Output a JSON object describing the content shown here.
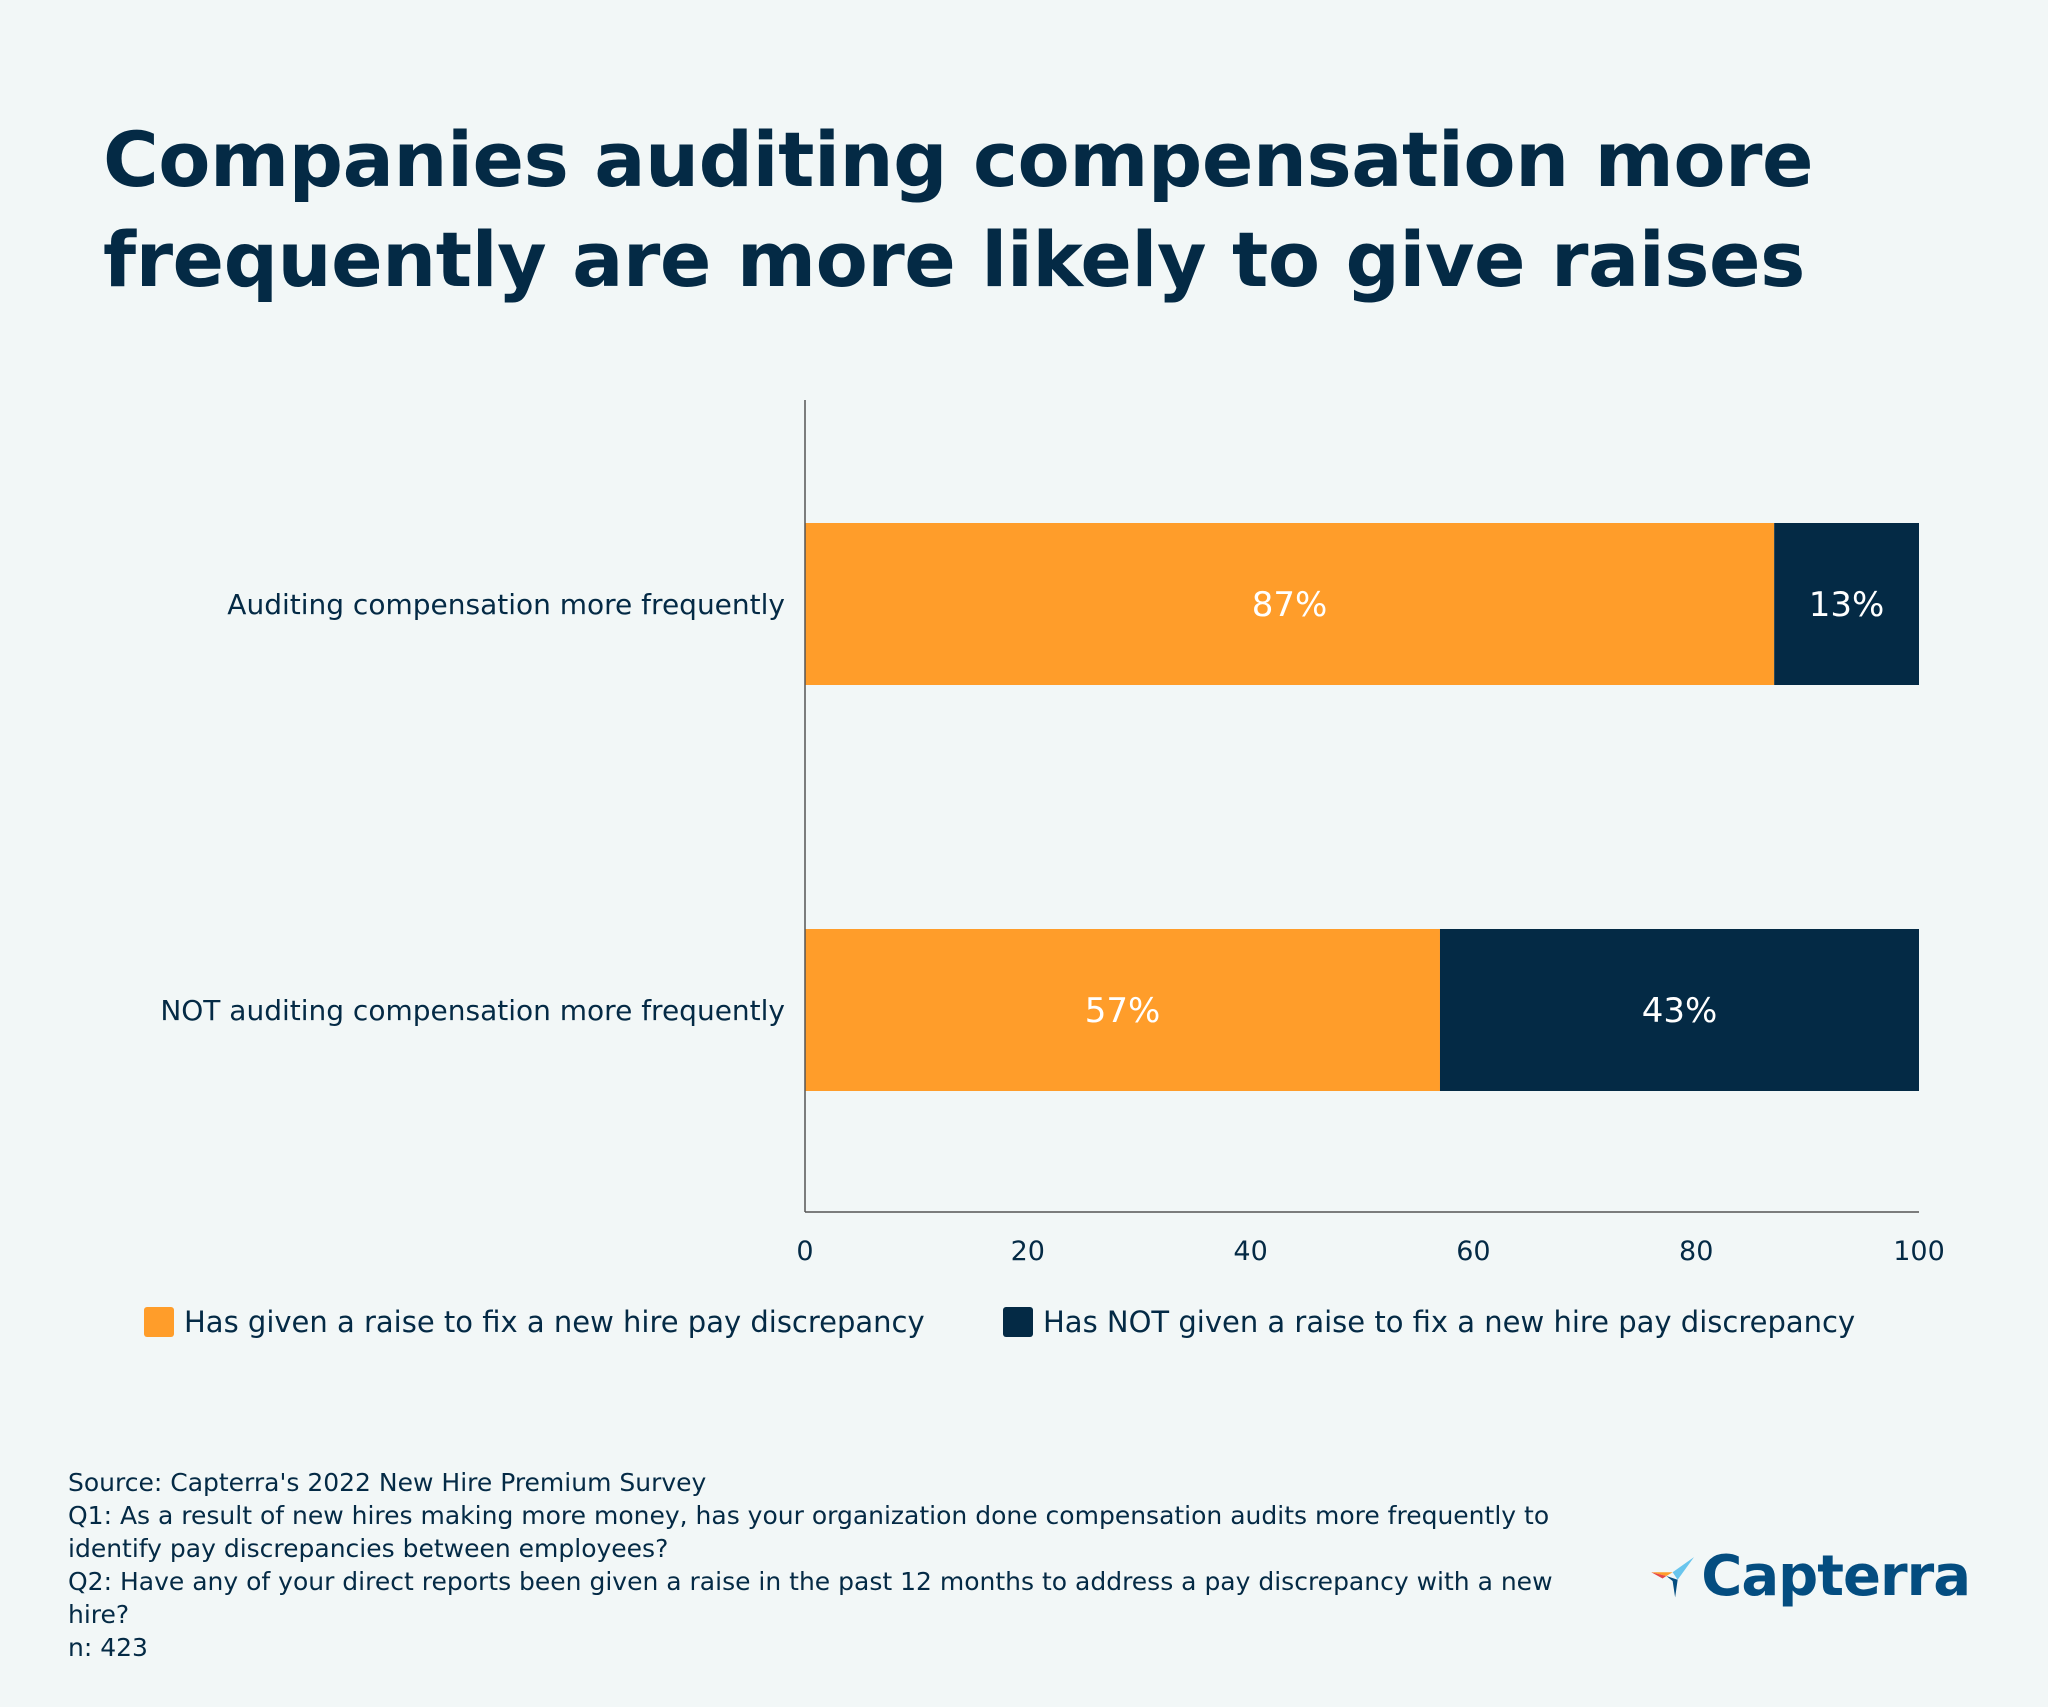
{
  "title_lines": [
    "Companies auditing compensation more",
    "frequently are more likely to give raises"
  ],
  "colors": {
    "background": "#f2f7f7",
    "given": "#ff9d2a",
    "not_given": "#042a45",
    "text": "#042a45",
    "logo_text": "#044d80"
  },
  "chart_data": {
    "type": "bar",
    "orientation": "horizontal",
    "stacked": true,
    "categories": [
      "Auditing compensation more frequently",
      "NOT auditing compensation more frequently"
    ],
    "series": [
      {
        "name": "Has given a raise to fix a new hire pay discrepancy",
        "values": [
          87,
          57
        ],
        "labels": [
          "87%",
          "57%"
        ]
      },
      {
        "name": "Has NOT given a raise to fix a new hire pay discrepancy",
        "values": [
          13,
          43
        ],
        "labels": [
          "13%",
          "43%"
        ]
      }
    ],
    "xlim": [
      0,
      100
    ],
    "xticks": [
      "0",
      "20",
      "40",
      "60",
      "80",
      "100"
    ],
    "grid": false,
    "legend_position": "bottom"
  },
  "footnote": {
    "source": "Source: Capterra's 2022 New Hire Premium Survey",
    "q1": "Q1: As a result of new hires making more money, has your organization done compensation audits more frequently to identify pay discrepancies between employees?",
    "q2": "Q2: Have any of your direct reports been given a raise in the past 12 months to address a pay discrepancy with a new hire?",
    "n": "n: 423"
  },
  "logo": {
    "text": "Capterra",
    "icon": "capterra-logo-icon"
  }
}
